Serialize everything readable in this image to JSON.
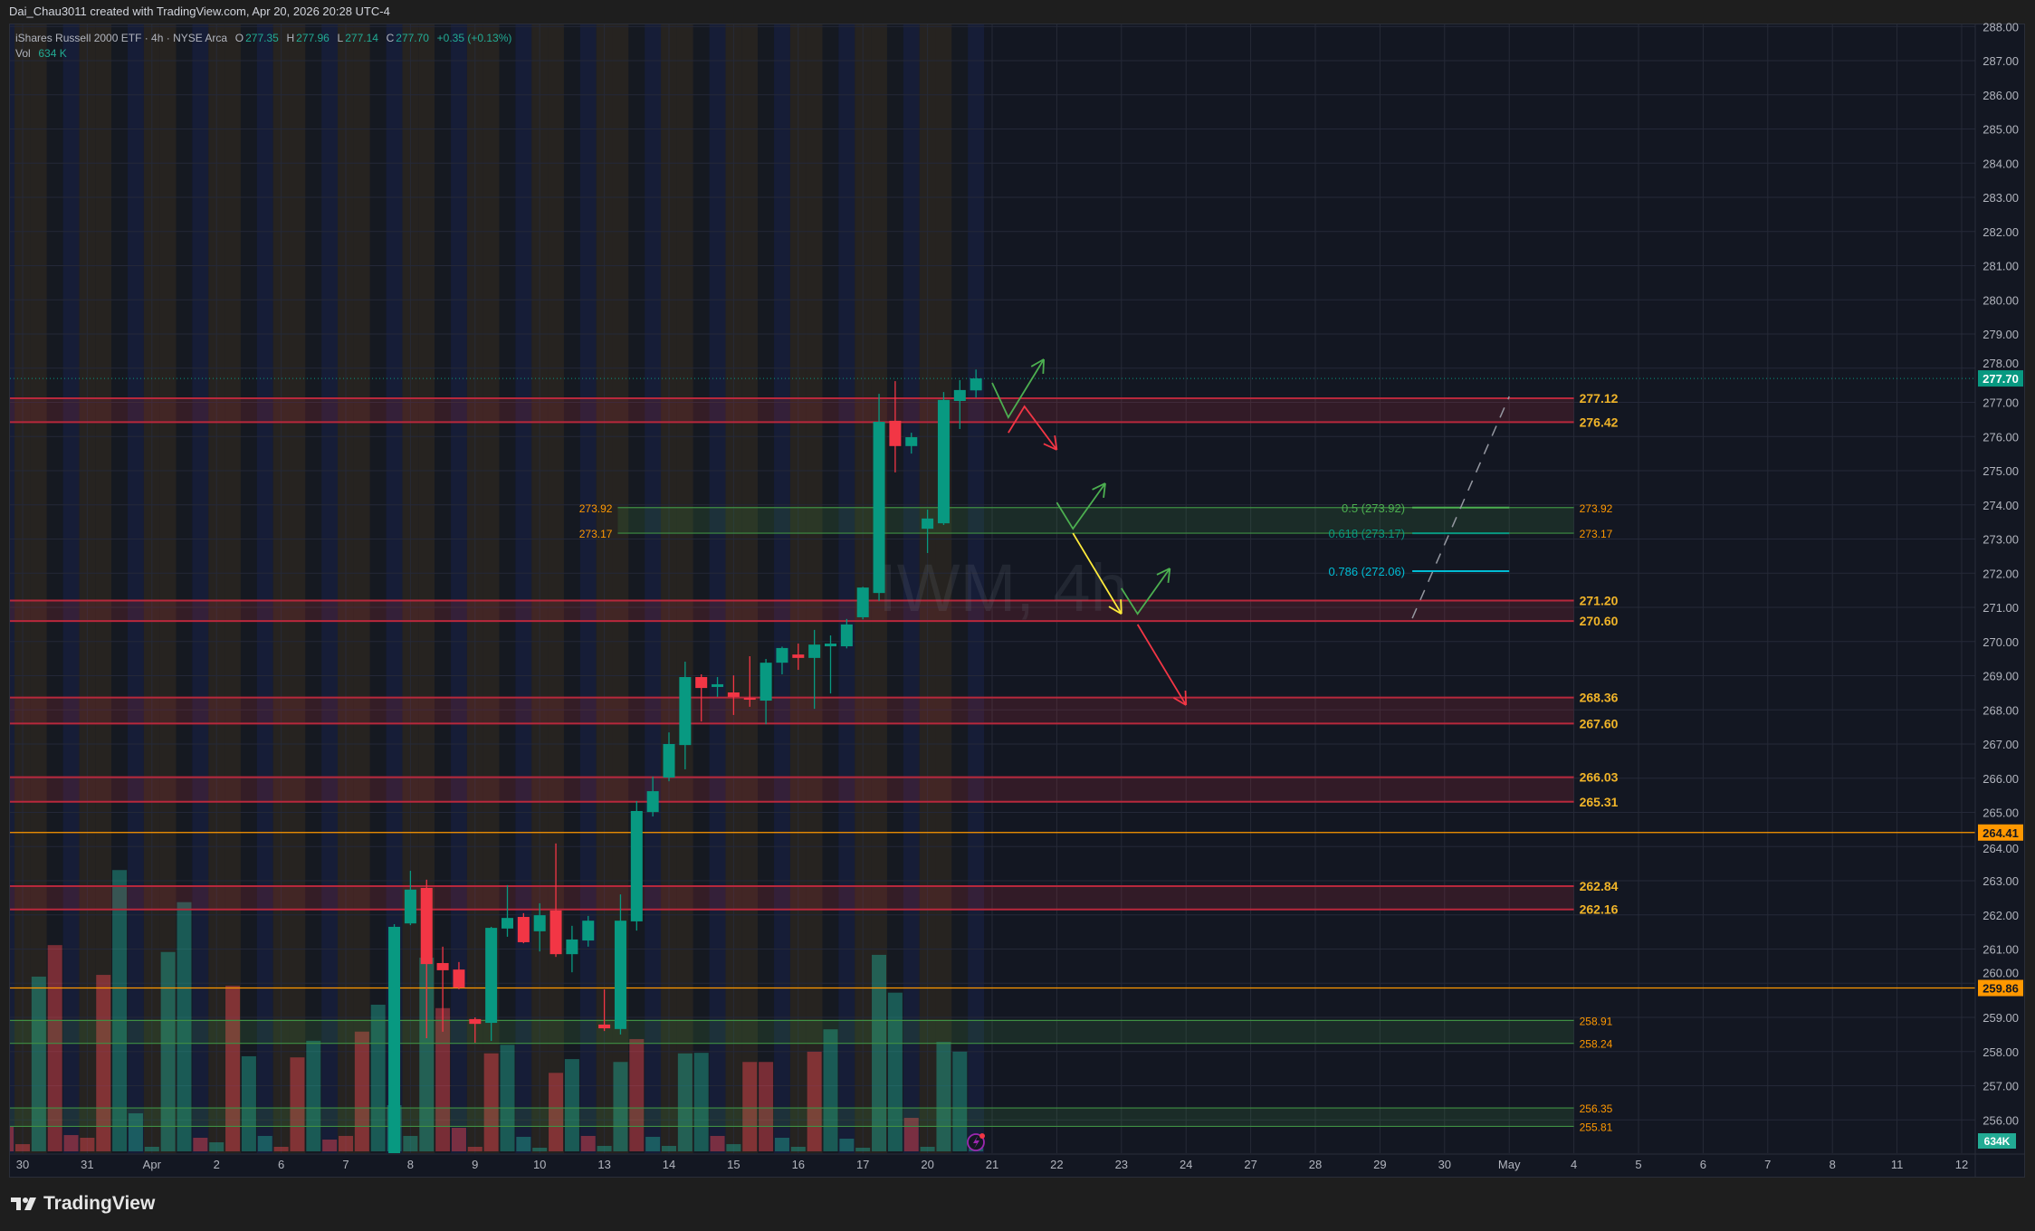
{
  "attribution": "Dai_Chau3011 created with TradingView.com, Apr 20, 2026 20:28 UTC-4",
  "legend": {
    "symbol": "iShares Russell 2000 ETF · 4h · NYSE Arca",
    "o_label": "O",
    "o": "277.35",
    "h_label": "H",
    "h": "277.96",
    "l_label": "L",
    "l": "277.14",
    "c_label": "C",
    "c": "277.70",
    "change": "+0.35 (+0.13%)",
    "vol_label": "Vol",
    "vol": "634 K"
  },
  "brand": "TradingView",
  "colors": {
    "up": "#089981",
    "down": "#f23645",
    "level": "#f0b429",
    "orange": "#ff9800",
    "bg": "#131722"
  },
  "chart_data": {
    "type": "candlestick",
    "title": "IWM, 4h",
    "yrange": [
      255.5,
      288
    ],
    "price_ticks": [
      "256.00",
      "257.00",
      "258.00",
      "259.00",
      "260.00",
      "261.00",
      "262.00",
      "263.00",
      "264.00",
      "265.00",
      "266.00",
      "267.00",
      "268.00",
      "269.00",
      "270.00",
      "271.00",
      "272.00",
      "273.00",
      "274.00",
      "275.00",
      "276.00",
      "277.00",
      "278.00",
      "279.00",
      "280.00",
      "281.00",
      "282.00",
      "283.00",
      "284.00",
      "285.00",
      "286.00",
      "287.00",
      "288.00"
    ],
    "last_price": "277.70",
    "volume_badge": "634K",
    "time_labels": [
      {
        "t": "30",
        "bar": 0
      },
      {
        "t": "31",
        "bar": 4
      },
      {
        "t": "Apr",
        "bar": 8
      },
      {
        "t": "2",
        "bar": 12
      },
      {
        "t": "6",
        "bar": 16
      },
      {
        "t": "7",
        "bar": 20
      },
      {
        "t": "8",
        "bar": 24
      },
      {
        "t": "9",
        "bar": 28
      },
      {
        "t": "10",
        "bar": 32
      },
      {
        "t": "13",
        "bar": 36
      },
      {
        "t": "14",
        "bar": 40
      },
      {
        "t": "15",
        "bar": 44
      },
      {
        "t": "16",
        "bar": 48
      },
      {
        "t": "17",
        "bar": 52
      },
      {
        "t": "20",
        "bar": 56
      },
      {
        "t": "21",
        "bar": 60
      },
      {
        "t": "22",
        "bar": 64
      },
      {
        "t": "23",
        "bar": 68
      },
      {
        "t": "24",
        "bar": 72
      },
      {
        "t": "27",
        "bar": 76
      },
      {
        "t": "28",
        "bar": 80
      },
      {
        "t": "29",
        "bar": 84
      },
      {
        "t": "30",
        "bar": 88
      },
      {
        "t": "May",
        "bar": 92
      },
      {
        "t": "4",
        "bar": 96
      },
      {
        "t": "5",
        "bar": 100
      },
      {
        "t": "6",
        "bar": 104
      },
      {
        "t": "7",
        "bar": 108
      },
      {
        "t": "8",
        "bar": 112
      },
      {
        "t": "11",
        "bar": 116
      },
      {
        "t": "12",
        "bar": 120
      }
    ],
    "candles": [
      {
        "bar": 23,
        "o": 255.0,
        "h": 261.73,
        "l": 254.9,
        "c": 261.65
      },
      {
        "bar": 24,
        "o": 261.75,
        "h": 263.29,
        "l": 261.7,
        "c": 262.74
      },
      {
        "bar": 25,
        "o": 262.79,
        "h": 263.03,
        "l": 258.39,
        "c": 260.56
      },
      {
        "bar": 26,
        "o": 260.59,
        "h": 261.07,
        "l": 258.58,
        "c": 260.38
      },
      {
        "bar": 27,
        "o": 260.4,
        "h": 260.62,
        "l": 259.82,
        "c": 259.87
      },
      {
        "bar": 28,
        "o": 258.95,
        "h": 259.0,
        "l": 258.26,
        "c": 258.81
      },
      {
        "bar": 29,
        "o": 258.84,
        "h": 261.65,
        "l": 258.31,
        "c": 261.62
      },
      {
        "bar": 30,
        "o": 261.6,
        "h": 262.87,
        "l": 261.36,
        "c": 261.91
      },
      {
        "bar": 31,
        "o": 261.94,
        "h": 262.05,
        "l": 261.17,
        "c": 261.2
      },
      {
        "bar": 32,
        "o": 261.52,
        "h": 262.34,
        "l": 260.93,
        "c": 261.99
      },
      {
        "bar": 33,
        "o": 262.13,
        "h": 264.09,
        "l": 260.77,
        "c": 260.85
      },
      {
        "bar": 34,
        "o": 260.85,
        "h": 261.68,
        "l": 260.32,
        "c": 261.28
      },
      {
        "bar": 35,
        "o": 261.25,
        "h": 261.97,
        "l": 261.07,
        "c": 261.83
      },
      {
        "bar": 36,
        "o": 258.79,
        "h": 259.82,
        "l": 258.6,
        "c": 258.68
      },
      {
        "bar": 37,
        "o": 258.66,
        "h": 262.6,
        "l": 258.5,
        "c": 261.83
      },
      {
        "bar": 38,
        "o": 261.81,
        "h": 265.33,
        "l": 261.54,
        "c": 265.04
      },
      {
        "bar": 39,
        "o": 265.01,
        "h": 266.05,
        "l": 264.88,
        "c": 265.62
      },
      {
        "bar": 40,
        "o": 266.02,
        "h": 267.34,
        "l": 265.91,
        "c": 267.0
      },
      {
        "bar": 41,
        "o": 266.97,
        "h": 269.41,
        "l": 266.26,
        "c": 268.96
      },
      {
        "bar": 42,
        "o": 268.96,
        "h": 269.04,
        "l": 267.66,
        "c": 268.64
      },
      {
        "bar": 43,
        "o": 268.67,
        "h": 268.96,
        "l": 268.38,
        "c": 268.75
      },
      {
        "bar": 44,
        "o": 268.51,
        "h": 269.01,
        "l": 267.85,
        "c": 268.38
      },
      {
        "bar": 45,
        "o": 268.35,
        "h": 269.57,
        "l": 268.09,
        "c": 268.3
      },
      {
        "bar": 46,
        "o": 268.27,
        "h": 269.49,
        "l": 267.58,
        "c": 269.38
      },
      {
        "bar": 47,
        "o": 269.38,
        "h": 269.85,
        "l": 269.04,
        "c": 269.81
      },
      {
        "bar": 48,
        "o": 269.62,
        "h": 269.94,
        "l": 269.17,
        "c": 269.52
      },
      {
        "bar": 49,
        "o": 269.52,
        "h": 270.34,
        "l": 268.03,
        "c": 269.91
      },
      {
        "bar": 50,
        "o": 269.86,
        "h": 270.18,
        "l": 268.48,
        "c": 269.94
      },
      {
        "bar": 51,
        "o": 269.86,
        "h": 270.66,
        "l": 269.8,
        "c": 270.5
      },
      {
        "bar": 52,
        "o": 270.71,
        "h": 271.6,
        "l": 270.65,
        "c": 271.58
      },
      {
        "bar": 53,
        "o": 271.42,
        "h": 277.25,
        "l": 271.19,
        "c": 276.43
      },
      {
        "bar": 54,
        "o": 276.46,
        "h": 277.62,
        "l": 274.95,
        "c": 275.72
      },
      {
        "bar": 55,
        "o": 275.72,
        "h": 276.11,
        "l": 275.5,
        "c": 275.98
      },
      {
        "bar": 56,
        "o": 273.3,
        "h": 273.86,
        "l": 272.59,
        "c": 273.6
      },
      {
        "bar": 57,
        "o": 273.46,
        "h": 277.3,
        "l": 273.41,
        "c": 277.07
      },
      {
        "bar": 58,
        "o": 277.04,
        "h": 277.65,
        "l": 276.22,
        "c": 277.36
      },
      {
        "bar": 59,
        "o": 277.35,
        "h": 277.96,
        "l": 277.14,
        "c": 277.7
      }
    ],
    "volume_k": {
      "start_bar": -1,
      "values": [
        4270,
        1260,
        30500,
        36000,
        2840,
        2370,
        30800,
        49100,
        6640,
        790,
        34800,
        43500,
        2370,
        1580,
        28900,
        16600,
        2690,
        790,
        16400,
        19300,
        2050,
        2690,
        20900,
        25600,
        8060,
        2690,
        33800,
        25000,
        4110,
        790,
        17100,
        18600,
        2530,
        630,
        13700,
        16100,
        2690,
        950,
        15600,
        19600,
        2530,
        950,
        17100,
        17200,
        2690,
        1260,
        15600,
        15600,
        2370,
        790,
        17400,
        21300,
        2210,
        630,
        34300,
        27700,
        5850,
        790,
        19100,
        17400,
        634
      ],
      "dir": "dutddddtttttdtdttddtdddttttddddtttdtdttdttttdtddttdtttttdtttt"
    },
    "zones": [
      {
        "top": "277.12",
        "bottom": "276.42",
        "kind": "resistance",
        "from_bar": -1,
        "to_bar": 96
      },
      {
        "top": "271.20",
        "bottom": "270.60",
        "kind": "resistance",
        "from_bar": -1,
        "to_bar": 96
      },
      {
        "top": "268.36",
        "bottom": "267.60",
        "kind": "resistance",
        "from_bar": -1,
        "to_bar": 96
      },
      {
        "top": "266.03",
        "bottom": "265.31",
        "kind": "resistance",
        "from_bar": -1,
        "to_bar": 96
      },
      {
        "top": "262.84",
        "bottom": "262.16",
        "kind": "resistance",
        "from_bar": -1,
        "to_bar": 96
      },
      {
        "top": "273.92",
        "bottom": "273.17",
        "kind": "support",
        "from_bar": 37,
        "to_bar": 96,
        "left_labels": true
      },
      {
        "top": "258.91",
        "bottom": "258.24",
        "kind": "support",
        "from_bar": -1,
        "to_bar": 96
      },
      {
        "top": "256.35",
        "bottom": "255.81",
        "kind": "support",
        "from_bar": -1,
        "to_bar": 96
      }
    ],
    "hlines": [
      {
        "price": "264.41"
      },
      {
        "price": "259.86"
      }
    ],
    "fib": [
      {
        "price": 273.92,
        "label": "0.5 (273.92)",
        "color": "#4caf50"
      },
      {
        "price": 273.17,
        "label": "0.618 (273.17)",
        "color": "#089981"
      },
      {
        "price": 272.06,
        "label": "0.786 (272.06)",
        "color": "#00bcd4"
      }
    ],
    "fib_bars": [
      86,
      92
    ],
    "trend_line": [
      [
        86,
        270.68
      ],
      [
        92,
        277.17
      ]
    ],
    "arrows": [
      {
        "color": "#4caf50",
        "pts": [
          [
            60.0,
            277.57
          ],
          [
            61.0,
            276.56
          ],
          [
            63.2,
            278.26
          ]
        ]
      },
      {
        "color": "#f23645",
        "pts": [
          [
            61.0,
            276.11
          ],
          [
            62.0,
            276.88
          ],
          [
            64.0,
            275.61
          ]
        ]
      },
      {
        "color": "#4caf50",
        "pts": [
          [
            64.0,
            274.07
          ],
          [
            65.0,
            273.3
          ],
          [
            67.0,
            274.63
          ]
        ]
      },
      {
        "color": "#ffeb3b",
        "pts": [
          [
            65.0,
            273.17
          ],
          [
            68.0,
            270.81
          ]
        ]
      },
      {
        "color": "#4caf50",
        "pts": [
          [
            68.0,
            271.56
          ],
          [
            69.0,
            270.81
          ],
          [
            71.0,
            272.14
          ]
        ]
      },
      {
        "color": "#f23645",
        "pts": [
          [
            69.0,
            270.5
          ],
          [
            72.0,
            268.14
          ]
        ]
      }
    ]
  }
}
